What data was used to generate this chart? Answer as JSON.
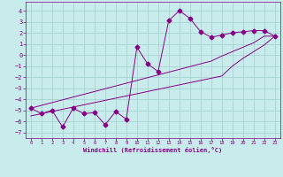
{
  "x_data": [
    0,
    1,
    2,
    3,
    4,
    5,
    6,
    7,
    8,
    9,
    10,
    11,
    12,
    13,
    14,
    15,
    16,
    17,
    18,
    19,
    20,
    21,
    22,
    23
  ],
  "y_main": [
    -4.8,
    -5.3,
    -5.0,
    -6.5,
    -4.8,
    -5.3,
    -5.2,
    -6.3,
    -5.1,
    -5.8,
    0.7,
    -0.8,
    -1.5,
    3.1,
    4.0,
    3.3,
    2.1,
    1.6,
    1.8,
    2.0,
    2.1,
    2.2,
    2.2,
    1.7
  ],
  "y_line1": [
    -4.8,
    -4.55,
    -4.3,
    -4.05,
    -3.8,
    -3.55,
    -3.3,
    -3.05,
    -2.8,
    -2.55,
    -2.3,
    -2.05,
    -1.8,
    -1.55,
    -1.3,
    -1.05,
    -0.8,
    -0.55,
    -0.1,
    0.3,
    0.7,
    1.1,
    1.7,
    1.7
  ],
  "y_line2": [
    -5.5,
    -5.3,
    -5.1,
    -4.9,
    -4.7,
    -4.5,
    -4.3,
    -4.1,
    -3.9,
    -3.7,
    -3.5,
    -3.3,
    -3.1,
    -2.9,
    -2.7,
    -2.5,
    -2.3,
    -2.1,
    -1.9,
    -1.0,
    -0.3,
    0.3,
    0.9,
    1.7
  ],
  "background_color": "#c8ecec",
  "grid_color": "#a0cece",
  "line_color": "#880088",
  "marker": "D",
  "marker_size": 2.5,
  "xlabel": "Windchill (Refroidissement éolien,°C)",
  "xlim": [
    -0.5,
    23.5
  ],
  "ylim": [
    -7.5,
    4.8
  ],
  "yticks": [
    4,
    3,
    2,
    1,
    0,
    -1,
    -2,
    -3,
    -4,
    -5,
    -6,
    -7
  ],
  "xticks": [
    0,
    1,
    2,
    3,
    4,
    5,
    6,
    7,
    8,
    9,
    10,
    11,
    12,
    13,
    14,
    15,
    16,
    17,
    18,
    19,
    20,
    21,
    22,
    23
  ]
}
